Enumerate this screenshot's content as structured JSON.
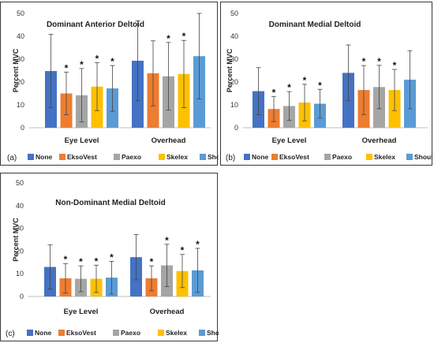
{
  "chart_data": [
    {
      "type": "bar",
      "panel_label": "(a)",
      "title": "Dominant Anterior Deltoid",
      "ylabel": "Percent MVC",
      "ylim": [
        0,
        50
      ],
      "yticks": [
        0,
        10,
        20,
        30,
        40,
        50
      ],
      "categories": [
        "Eye Level",
        "Overhead"
      ],
      "series": [
        {
          "name": "None",
          "values": [
            24.8,
            29.3
          ],
          "errors": [
            16,
            17.5
          ],
          "stars": [
            false,
            false
          ]
        },
        {
          "name": "EksoVest",
          "values": [
            15,
            23.8
          ],
          "errors": [
            9.3,
            14.2
          ],
          "stars": [
            true,
            false
          ]
        },
        {
          "name": "Paexo",
          "values": [
            14.2,
            22.5
          ],
          "errors": [
            11.7,
            14.8
          ],
          "stars": [
            true,
            true
          ]
        },
        {
          "name": "Skelex",
          "values": [
            18,
            23.5
          ],
          "errors": [
            10.5,
            14.7
          ],
          "stars": [
            true,
            true
          ]
        },
        {
          "name": "ShoulderX",
          "values": [
            17.2,
            31.3
          ],
          "errors": [
            10,
            18.7
          ],
          "stars": [
            true,
            false
          ]
        }
      ]
    },
    {
      "type": "bar",
      "panel_label": "(b)",
      "title": "Dominant Medial Deltoid",
      "ylabel": "Percent MVC",
      "ylim": [
        0,
        50
      ],
      "yticks": [
        0,
        10,
        20,
        30,
        40,
        50
      ],
      "categories": [
        "Eye Level",
        "Overhead"
      ],
      "series": [
        {
          "name": "None",
          "values": [
            16,
            24
          ],
          "errors": [
            10.3,
            12.2
          ],
          "stars": [
            false,
            false
          ]
        },
        {
          "name": "EksoVest",
          "values": [
            8.2,
            16.5
          ],
          "errors": [
            5.5,
            10.7
          ],
          "stars": [
            true,
            true
          ]
        },
        {
          "name": "Paexo",
          "values": [
            9.5,
            17.8
          ],
          "errors": [
            6.3,
            9.5
          ],
          "stars": [
            true,
            true
          ]
        },
        {
          "name": "Skelex",
          "values": [
            11,
            16.5
          ],
          "errors": [
            8,
            9
          ],
          "stars": [
            true,
            true
          ]
        },
        {
          "name": "ShoulderX",
          "values": [
            10.5,
            21
          ],
          "errors": [
            6.3,
            12.7
          ],
          "stars": [
            true,
            false
          ]
        }
      ]
    },
    {
      "type": "bar",
      "panel_label": "(c)",
      "title": "Non-Dominant Medial Deltoid",
      "ylabel": "Percent MVC",
      "ylim": [
        0,
        50
      ],
      "yticks": [
        0,
        10,
        20,
        30,
        40,
        50
      ],
      "categories": [
        "Eye Level",
        "Overhead"
      ],
      "series": [
        {
          "name": "None",
          "values": [
            13,
            17.3
          ],
          "errors": [
            9.7,
            10
          ],
          "stars": [
            false,
            false
          ]
        },
        {
          "name": "EksoVest",
          "values": [
            8,
            8
          ],
          "errors": [
            6.5,
            5.5
          ],
          "stars": [
            true,
            true
          ]
        },
        {
          "name": "Paexo",
          "values": [
            7.8,
            13.7
          ],
          "errors": [
            5.7,
            9.3
          ],
          "stars": [
            true,
            true
          ]
        },
        {
          "name": "Skelex",
          "values": [
            7.8,
            11.2
          ],
          "errors": [
            6,
            7.3
          ],
          "stars": [
            true,
            true
          ]
        },
        {
          "name": "ShoulderX",
          "values": [
            8.3,
            11.5
          ],
          "errors": [
            7.2,
            9.7
          ],
          "stars": [
            true,
            true
          ]
        }
      ]
    }
  ],
  "colors": {
    "None": "#4472c4",
    "EksoVest": "#ed7d31",
    "Paexo": "#a5a5a5",
    "Skelex": "#ffc000",
    "ShoulderX": "#5b9bd5"
  },
  "significance_marker": "*"
}
